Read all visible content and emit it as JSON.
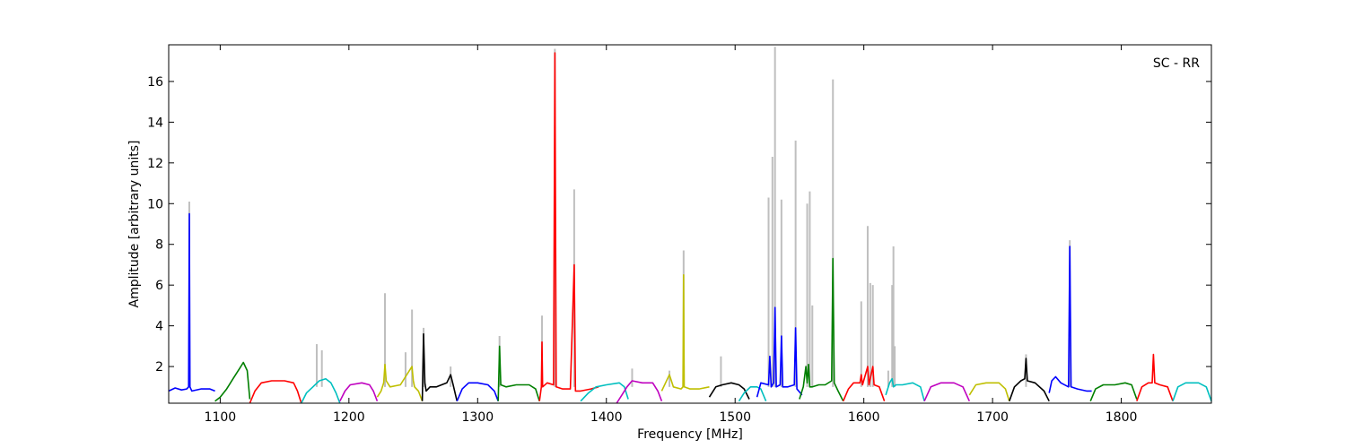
{
  "chart_data": {
    "type": "line",
    "title": "",
    "annotation": "SC - RR",
    "xlabel": "Frequency [MHz]",
    "ylabel": "Amplitude [arbitrary units]",
    "xlim": [
      1060,
      1870
    ],
    "ylim": [
      0.2,
      17.8
    ],
    "xticks": [
      1100,
      1200,
      1300,
      1400,
      1500,
      1600,
      1700,
      1800
    ],
    "yticks": [
      2,
      4,
      6,
      8,
      10,
      12,
      14,
      16
    ],
    "grid": false,
    "background_series_color": "#bfbfbf",
    "background_spikes": [
      [
        1076,
        10.1
      ],
      [
        1175,
        3.1
      ],
      [
        1179,
        2.8
      ],
      [
        1228,
        5.6
      ],
      [
        1244,
        2.7
      ],
      [
        1249,
        4.8
      ],
      [
        1258,
        3.9
      ],
      [
        1279,
        2.0
      ],
      [
        1317,
        3.5
      ],
      [
        1350,
        4.5
      ],
      [
        1360,
        17.6
      ],
      [
        1375,
        10.7
      ],
      [
        1420,
        1.9
      ],
      [
        1449,
        1.8
      ],
      [
        1460,
        7.7
      ],
      [
        1489,
        2.5
      ],
      [
        1526,
        10.3
      ],
      [
        1529,
        12.3
      ],
      [
        1531,
        17.7
      ],
      [
        1536,
        10.2
      ],
      [
        1547,
        13.1
      ],
      [
        1556,
        10.0
      ],
      [
        1558,
        10.6
      ],
      [
        1560,
        5.0
      ],
      [
        1576,
        16.1
      ],
      [
        1598,
        5.2
      ],
      [
        1603,
        8.9
      ],
      [
        1605,
        6.1
      ],
      [
        1607,
        6.0
      ],
      [
        1619,
        1.8
      ],
      [
        1622,
        6.0
      ],
      [
        1623,
        7.9
      ],
      [
        1624,
        3.0
      ],
      [
        1726,
        2.6
      ],
      [
        1760,
        8.2
      ]
    ],
    "series": [
      {
        "color": "#0000ff",
        "x": [
          1060,
          1065,
          1070,
          1074,
          1075.5,
          1076,
          1076.5,
          1078,
          1085,
          1092,
          1096
        ],
        "y": [
          0.8,
          0.95,
          0.85,
          0.9,
          1.0,
          9.5,
          1.0,
          0.8,
          0.9,
          0.9,
          0.8
        ]
      },
      {
        "color": "#007f00",
        "x": [
          1096,
          1100,
          1105,
          1110,
          1115,
          1118,
          1121,
          1123
        ],
        "y": [
          0.3,
          0.5,
          0.9,
          1.4,
          1.9,
          2.2,
          1.8,
          0.4
        ]
      },
      {
        "color": "#ff0000",
        "x": [
          1123,
          1127,
          1132,
          1140,
          1150,
          1157,
          1160,
          1163
        ],
        "y": [
          0.2,
          0.8,
          1.2,
          1.3,
          1.3,
          1.2,
          0.8,
          0.2
        ]
      },
      {
        "color": "#00bfbf",
        "x": [
          1163,
          1167,
          1172,
          1177,
          1182,
          1186,
          1190,
          1193
        ],
        "y": [
          0.2,
          0.7,
          1.0,
          1.3,
          1.4,
          1.2,
          0.7,
          0.2
        ]
      },
      {
        "color": "#bf00bf",
        "x": [
          1193,
          1197,
          1201,
          1210,
          1216,
          1219,
          1222
        ],
        "y": [
          0.3,
          0.8,
          1.1,
          1.2,
          1.1,
          0.8,
          0.3
        ]
      },
      {
        "color": "#bfbf00",
        "x": [
          1222,
          1225,
          1227,
          1228,
          1229,
          1232,
          1240,
          1249,
          1250,
          1251,
          1254,
          1257
        ],
        "y": [
          0.5,
          0.8,
          1.2,
          2.1,
          1.3,
          1.0,
          1.1,
          2.0,
          1.3,
          1.0,
          0.8,
          0.3
        ]
      },
      {
        "color": "#000000",
        "x": [
          1257,
          1258,
          1259,
          1260,
          1263,
          1268,
          1272,
          1276,
          1279,
          1281,
          1284
        ],
        "y": [
          0.3,
          3.6,
          1.2,
          0.8,
          1.0,
          1.0,
          1.1,
          1.2,
          1.6,
          1.1,
          0.3
        ]
      },
      {
        "color": "#0000ff",
        "x": [
          1284,
          1288,
          1293,
          1300,
          1308,
          1313,
          1316
        ],
        "y": [
          0.3,
          0.9,
          1.2,
          1.2,
          1.1,
          0.8,
          0.3
        ]
      },
      {
        "color": "#007f00",
        "x": [
          1316,
          1317,
          1318,
          1322,
          1330,
          1340,
          1345,
          1348
        ],
        "y": [
          0.3,
          3.0,
          1.1,
          1.0,
          1.1,
          1.1,
          0.9,
          0.3
        ]
      },
      {
        "color": "#ff0000",
        "x": [
          1348,
          1349.5,
          1350,
          1350.5,
          1354,
          1359,
          1360,
          1361,
          1366,
          1372,
          1375,
          1376,
          1380,
          1388,
          1394
        ],
        "y": [
          0.3,
          1.0,
          3.2,
          1.0,
          1.2,
          1.1,
          17.4,
          1.0,
          0.9,
          0.9,
          7.0,
          0.8,
          0.8,
          0.9,
          1.0
        ]
      },
      {
        "color": "#00bfbf",
        "x": [
          1380,
          1386,
          1392,
          1400,
          1410,
          1414,
          1417
        ],
        "y": [
          0.3,
          0.7,
          1.0,
          1.1,
          1.2,
          1.0,
          0.4
        ]
      },
      {
        "color": "#bf00bf",
        "x": [
          1408,
          1412,
          1416,
          1420,
          1428,
          1436,
          1440,
          1443
        ],
        "y": [
          0.2,
          0.6,
          1.0,
          1.3,
          1.2,
          1.2,
          0.8,
          0.3
        ]
      },
      {
        "color": "#bfbf00",
        "x": [
          1443,
          1446,
          1449,
          1452,
          1458,
          1459.5,
          1460,
          1460.5,
          1465,
          1472,
          1480
        ],
        "y": [
          0.8,
          1.2,
          1.6,
          1.0,
          0.9,
          1.0,
          6.5,
          1.0,
          0.9,
          0.9,
          1.0
        ]
      },
      {
        "color": "#000000",
        "x": [
          1480,
          1485,
          1490,
          1497,
          1503,
          1507,
          1511
        ],
        "y": [
          0.5,
          1.0,
          1.1,
          1.2,
          1.1,
          0.9,
          0.4
        ]
      },
      {
        "color": "#00bfbf",
        "x": [
          1503,
          1507,
          1512,
          1517,
          1520,
          1524
        ],
        "y": [
          0.3,
          0.7,
          1.0,
          1.0,
          0.9,
          0.3
        ]
      },
      {
        "color": "#0000ff",
        "x": [
          1517,
          1520,
          1526,
          1527,
          1528,
          1530,
          1531,
          1532,
          1535,
          1536,
          1537,
          1541,
          1546,
          1547,
          1548,
          1552
        ],
        "y": [
          0.5,
          1.2,
          1.1,
          2.5,
          1.0,
          1.2,
          4.9,
          1.0,
          1.1,
          3.5,
          1.0,
          1.0,
          1.1,
          3.9,
          0.9,
          0.6
        ]
      },
      {
        "color": "#007f00",
        "x": [
          1550,
          1553,
          1555,
          1556,
          1557,
          1558,
          1560,
          1565,
          1570,
          1575,
          1576,
          1577,
          1580,
          1584
        ],
        "y": [
          0.4,
          1.0,
          2.0,
          1.2,
          2.1,
          1.0,
          1.0,
          1.1,
          1.1,
          1.3,
          7.3,
          1.2,
          0.8,
          0.3
        ]
      },
      {
        "color": "#ff0000",
        "x": [
          1584,
          1588,
          1592,
          1597,
          1598,
          1599,
          1603,
          1604,
          1607,
          1608,
          1612,
          1616
        ],
        "y": [
          0.3,
          0.9,
          1.2,
          1.2,
          1.6,
          1.1,
          2.0,
          1.1,
          2.0,
          1.1,
          1.0,
          0.3
        ]
      },
      {
        "color": "#00bfbf",
        "x": [
          1617,
          1620,
          1622,
          1623,
          1625,
          1630,
          1638,
          1644,
          1647
        ],
        "y": [
          0.6,
          1.2,
          1.4,
          1.0,
          1.1,
          1.1,
          1.2,
          1.0,
          0.3
        ]
      },
      {
        "color": "#bf00bf",
        "x": [
          1647,
          1652,
          1660,
          1670,
          1677,
          1682
        ],
        "y": [
          0.3,
          1.0,
          1.2,
          1.2,
          1.0,
          0.3
        ]
      },
      {
        "color": "#bfbf00",
        "x": [
          1682,
          1687,
          1695,
          1705,
          1710,
          1713
        ],
        "y": [
          0.6,
          1.1,
          1.2,
          1.2,
          0.9,
          0.3
        ]
      },
      {
        "color": "#000000",
        "x": [
          1713,
          1717,
          1722,
          1725,
          1726,
          1727,
          1733,
          1740,
          1744
        ],
        "y": [
          0.3,
          1.0,
          1.3,
          1.4,
          2.4,
          1.3,
          1.2,
          0.8,
          0.3
        ]
      },
      {
        "color": "#0000ff",
        "x": [
          1744,
          1746,
          1749,
          1753,
          1759,
          1760,
          1761,
          1766,
          1773,
          1777
        ],
        "y": [
          0.7,
          1.3,
          1.5,
          1.2,
          1.0,
          7.9,
          1.0,
          0.9,
          0.8,
          0.8
        ]
      },
      {
        "color": "#007f00",
        "x": [
          1776,
          1780,
          1786,
          1795,
          1803,
          1808,
          1812
        ],
        "y": [
          0.3,
          0.9,
          1.1,
          1.1,
          1.2,
          1.1,
          0.4
        ]
      },
      {
        "color": "#ff0000",
        "x": [
          1812,
          1816,
          1821,
          1824,
          1825,
          1826,
          1830,
          1836,
          1840
        ],
        "y": [
          0.3,
          1.0,
          1.2,
          1.2,
          2.6,
          1.2,
          1.1,
          1.0,
          0.3
        ]
      },
      {
        "color": "#00bfbf",
        "x": [
          1840,
          1844,
          1850,
          1860,
          1866,
          1870
        ],
        "y": [
          0.3,
          1.0,
          1.2,
          1.2,
          1.0,
          0.3
        ]
      }
    ]
  }
}
